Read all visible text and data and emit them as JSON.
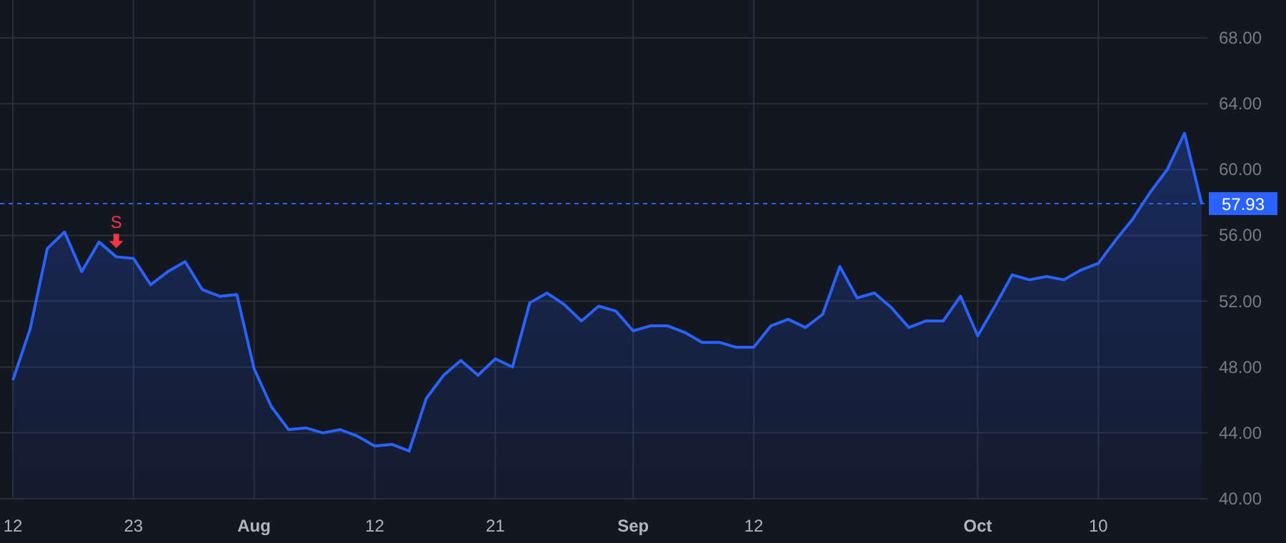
{
  "chart_data": {
    "type": "area",
    "categories": [
      "12",
      null,
      null,
      null,
      null,
      null,
      null,
      "23",
      null,
      null,
      null,
      null,
      null,
      null,
      "Aug",
      null,
      null,
      null,
      null,
      null,
      null,
      "12",
      null,
      null,
      null,
      null,
      null,
      null,
      "21",
      null,
      null,
      null,
      null,
      null,
      null,
      null,
      "Sep",
      null,
      null,
      null,
      null,
      null,
      null,
      "12",
      null,
      null,
      null,
      null,
      null,
      null,
      null,
      null,
      null,
      null,
      null,
      null,
      "Oct",
      null,
      null,
      null,
      null,
      null,
      null,
      "10",
      null,
      null,
      null,
      null,
      null,
      null
    ],
    "series": [
      {
        "color": "#2962ff",
        "values": [
          47.2,
          50.3,
          55.2,
          56.2,
          53.8,
          55.6,
          54.7,
          54.6,
          53.0,
          53.8,
          54.4,
          52.7,
          52.3,
          52.4,
          47.9,
          45.6,
          44.2,
          44.3,
          44.0,
          44.2,
          43.8,
          43.2,
          43.3,
          42.9,
          46.1,
          47.5,
          48.4,
          47.5,
          48.5,
          48.0,
          51.9,
          52.5,
          51.8,
          50.8,
          51.7,
          51.4,
          50.2,
          50.5,
          50.5,
          50.1,
          49.5,
          49.5,
          49.2,
          49.2,
          50.5,
          50.9,
          50.4,
          51.2,
          54.1,
          52.2,
          52.5,
          51.6,
          50.4,
          50.8,
          50.8,
          52.3,
          49.9,
          51.7,
          53.6,
          53.3,
          53.5,
          53.3,
          53.9,
          54.3,
          55.7,
          57.0,
          58.6,
          60.0,
          62.2,
          57.93
        ]
      }
    ],
    "ylim": [
      40,
      70.3
    ],
    "yticks": [
      {
        "value": 40,
        "label": "40.00"
      },
      {
        "value": 44,
        "label": "44.00"
      },
      {
        "value": 48,
        "label": "48.00"
      },
      {
        "value": 52,
        "label": "52.00"
      },
      {
        "value": 56,
        "label": "56.00"
      },
      {
        "value": 60,
        "label": "60.00"
      },
      {
        "value": 64,
        "label": "64.00"
      },
      {
        "value": 68,
        "label": "68.00"
      }
    ],
    "ref_lines": [
      {
        "axis": "y",
        "value": 57.93,
        "label": "57.93",
        "color": "#2962ff",
        "line_style": "dashed"
      }
    ],
    "annotations": [
      {
        "text": "S",
        "y": 54.7
      }
    ],
    "grid": true
  }
}
